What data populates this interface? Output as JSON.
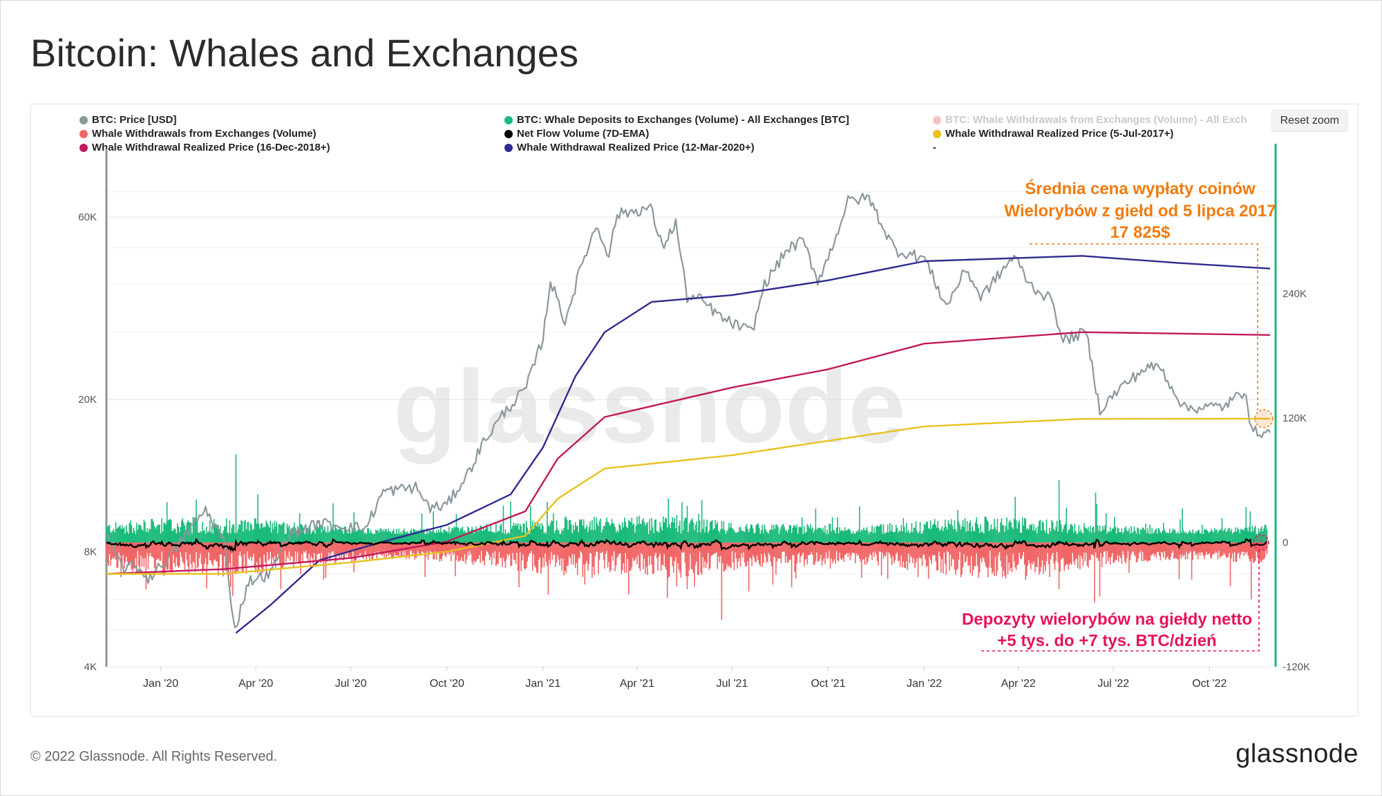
{
  "page": {
    "title": "Bitcoin: Whales and Exchanges",
    "footer_copyright": "© 2022 Glassnode. All Rights Reserved.",
    "footer_logo": "glassnode",
    "watermark": "glassnode",
    "reset_zoom_label": "Reset zoom"
  },
  "legend": [
    {
      "label": "BTC: Price [USD]",
      "color": "#8a979c",
      "disabled": false
    },
    {
      "label": "BTC: Whale Deposits to Exchanges (Volume) - All Exchanges [BTC]",
      "color": "#1aba7a",
      "disabled": false
    },
    {
      "label": "BTC: Whale Withdrawals from Exchanges (Volume) - All Exch",
      "color": "#f06565",
      "disabled": true
    },
    {
      "label": "Whale Withdrawals from Exchanges (Volume)",
      "color": "#f06565",
      "disabled": false
    },
    {
      "label": "Net Flow Volume (7D-EMA)",
      "color": "#000000",
      "disabled": false
    },
    {
      "label": "Whale Withdrawal Realized Price (5-Jul-2017+)",
      "color": "#e6c21f",
      "disabled": false
    },
    {
      "label": "Whale Withdrawal Realized Price (16-Dec-2018+)",
      "color": "#c2185b",
      "disabled": false
    },
    {
      "label": "Whale Withdrawal Realized Price (12-Mar-2020+)",
      "color": "#2e2a8f",
      "disabled": false
    },
    {
      "label": "-",
      "color": "",
      "disabled": false
    }
  ],
  "annotations": {
    "orange_line1": "Średnia cena wypłaty coinów",
    "orange_line2": "Wielorybów z giełd od 5 lipca 2017",
    "orange_line3": "17 825$",
    "pink_line1": "Depozyty wielorybów na giełdy netto",
    "pink_line2": "+5 tys. do +7 tys. BTC/dzień"
  },
  "chart_data": {
    "type": "line",
    "title": "Bitcoin: Whales and Exchanges",
    "x_ticks": [
      "Jan '20",
      "Apr '20",
      "Jul '20",
      "Oct '20",
      "Jan '21",
      "Apr '21",
      "Jul '21",
      "Oct '21",
      "Jan '22",
      "Apr '22",
      "Jul '22",
      "Oct '22"
    ],
    "x_range": [
      "2019-11-10",
      "2022-11-28"
    ],
    "y_left": {
      "label": "",
      "scale": "log",
      "ticks": [
        "4K",
        "8K",
        "20K",
        "60K"
      ],
      "tick_values": [
        4000,
        8000,
        20000,
        60000
      ],
      "range": [
        4000,
        80000
      ]
    },
    "y_right": {
      "label": "",
      "scale": "linear",
      "ticks": [
        "-120K",
        "0",
        "120K",
        "240K"
      ],
      "tick_values": [
        -120000,
        0,
        120000,
        240000
      ],
      "range": [
        -120000,
        360000
      ]
    },
    "grid": true,
    "legend_position": "top",
    "series": [
      {
        "name": "BTC: Price [USD]",
        "axis": "left",
        "color": "#8a979c",
        "points": [
          [
            "2019-11-10",
            8800
          ],
          [
            "2019-11-25",
            7300
          ],
          [
            "2019-12-10",
            7300
          ],
          [
            "2019-12-20",
            6800
          ],
          [
            "2020-01-10",
            7800
          ],
          [
            "2020-02-01",
            9400
          ],
          [
            "2020-02-13",
            10300
          ],
          [
            "2020-03-01",
            8600
          ],
          [
            "2020-03-12",
            5000
          ],
          [
            "2020-03-25",
            6700
          ],
          [
            "2020-04-15",
            7000
          ],
          [
            "2020-05-01",
            8800
          ],
          [
            "2020-06-01",
            9500
          ],
          [
            "2020-07-15",
            9200
          ],
          [
            "2020-08-01",
            11500
          ],
          [
            "2020-09-01",
            11800
          ],
          [
            "2020-09-15",
            10400
          ],
          [
            "2020-10-01",
            10600
          ],
          [
            "2020-10-21",
            12800
          ],
          [
            "2020-11-05",
            15500
          ],
          [
            "2020-11-25",
            18500
          ],
          [
            "2020-12-16",
            21500
          ],
          [
            "2021-01-01",
            29000
          ],
          [
            "2021-01-08",
            41000
          ],
          [
            "2021-01-22",
            32000
          ],
          [
            "2021-02-08",
            46000
          ],
          [
            "2021-02-21",
            57000
          ],
          [
            "2021-03-05",
            48000
          ],
          [
            "2021-03-13",
            61000
          ],
          [
            "2021-04-14",
            63500
          ],
          [
            "2021-04-25",
            50000
          ],
          [
            "2021-05-08",
            58000
          ],
          [
            "2021-05-19",
            37000
          ],
          [
            "2021-06-01",
            36500
          ],
          [
            "2021-06-22",
            32500
          ],
          [
            "2021-07-20",
            30000
          ],
          [
            "2021-08-01",
            40000
          ],
          [
            "2021-08-23",
            49500
          ],
          [
            "2021-09-07",
            52000
          ],
          [
            "2021-09-21",
            41000
          ],
          [
            "2021-10-01",
            47000
          ],
          [
            "2021-10-20",
            66000
          ],
          [
            "2021-11-09",
            67500
          ],
          [
            "2021-11-26",
            54000
          ],
          [
            "2021-12-05",
            49000
          ],
          [
            "2022-01-01",
            47000
          ],
          [
            "2022-01-22",
            35000
          ],
          [
            "2022-02-10",
            44000
          ],
          [
            "2022-02-24",
            37000
          ],
          [
            "2022-03-28",
            47500
          ],
          [
            "2022-04-12",
            40000
          ],
          [
            "2022-05-05",
            36000
          ],
          [
            "2022-05-12",
            28500
          ],
          [
            "2022-06-05",
            30000
          ],
          [
            "2022-06-18",
            18800
          ],
          [
            "2022-07-08",
            21500
          ],
          [
            "2022-07-30",
            24000
          ],
          [
            "2022-08-14",
            24500
          ],
          [
            "2022-09-07",
            19000
          ],
          [
            "2022-10-15",
            19200
          ],
          [
            "2022-11-05",
            21200
          ],
          [
            "2022-11-10",
            16500
          ],
          [
            "2022-11-28",
            16400
          ]
        ]
      },
      {
        "name": "Whale Withdrawal Realized Price (12-Mar-2020+)",
        "axis": "left",
        "color": "#2e2a8f",
        "points": [
          [
            "2020-03-13",
            4900
          ],
          [
            "2020-04-15",
            5800
          ],
          [
            "2020-06-01",
            7600
          ],
          [
            "2020-08-01",
            8500
          ],
          [
            "2020-10-01",
            9400
          ],
          [
            "2020-12-01",
            11300
          ],
          [
            "2021-01-01",
            15000
          ],
          [
            "2021-02-01",
            23000
          ],
          [
            "2021-03-01",
            30000
          ],
          [
            "2021-04-15",
            36000
          ],
          [
            "2021-07-01",
            37500
          ],
          [
            "2021-10-01",
            41000
          ],
          [
            "2022-01-01",
            46000
          ],
          [
            "2022-06-01",
            47500
          ],
          [
            "2022-09-01",
            45500
          ],
          [
            "2022-11-28",
            44000
          ]
        ]
      },
      {
        "name": "Whale Withdrawal Realized Price (16-Dec-2018+)",
        "axis": "left",
        "color": "#c2185b",
        "points": [
          [
            "2019-11-10",
            7000
          ],
          [
            "2020-03-01",
            7200
          ],
          [
            "2020-07-01",
            7700
          ],
          [
            "2020-10-01",
            8500
          ],
          [
            "2020-12-15",
            10200
          ],
          [
            "2021-01-15",
            14000
          ],
          [
            "2021-03-01",
            18000
          ],
          [
            "2021-07-01",
            21500
          ],
          [
            "2021-10-01",
            24000
          ],
          [
            "2022-01-01",
            28000
          ],
          [
            "2022-06-01",
            30000
          ],
          [
            "2022-11-28",
            29500
          ]
        ]
      },
      {
        "name": "Whale Withdrawal Realized Price (5-Jul-2017+)",
        "axis": "left",
        "color": "#e6c21f",
        "points": [
          [
            "2019-11-10",
            7000
          ],
          [
            "2020-03-01",
            7000
          ],
          [
            "2020-07-01",
            7500
          ],
          [
            "2020-10-01",
            8000
          ],
          [
            "2020-12-15",
            8800
          ],
          [
            "2021-01-15",
            11000
          ],
          [
            "2021-03-01",
            13200
          ],
          [
            "2021-07-01",
            14300
          ],
          [
            "2021-10-01",
            15600
          ],
          [
            "2022-01-01",
            17000
          ],
          [
            "2022-06-01",
            17800
          ],
          [
            "2022-11-28",
            17825
          ]
        ]
      },
      {
        "name": "BTC: Whale Deposits to Exchanges (Volume) - All Exchanges [BTC]",
        "axis": "right",
        "color": "#1aba7a",
        "type": "bar",
        "typical_daily_range": [
          8000,
          22000
        ],
        "max": 90000
      },
      {
        "name": "Whale Withdrawals from Exchanges (Volume)",
        "axis": "right",
        "color": "#f06565",
        "type": "bar",
        "typical_daily_range": [
          -30000,
          -8000
        ],
        "min": -90000
      },
      {
        "name": "Net Flow Volume (7D-EMA)",
        "axis": "right",
        "color": "#000000",
        "typical_range": [
          -10000,
          10000
        ]
      }
    ],
    "highlighted_values": {
      "realized_price_5_jul_2017": 17825,
      "net_whale_deposits_btc_per_day": "+5K to +7K"
    }
  }
}
